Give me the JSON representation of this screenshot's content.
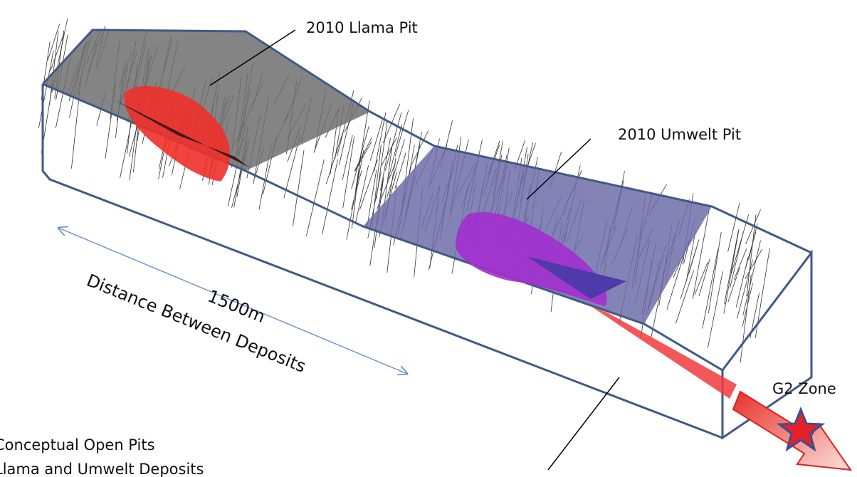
{
  "labels": {
    "llama_pit": "2010 Llama Pit",
    "umwelt_pit": "2010 Umwelt Pit",
    "distance_value": "1500m",
    "distance_caption": "Distance Between Deposits",
    "g2_zone": "G2 Zone"
  },
  "caption": {
    "line1": "Conceptual Open Pits",
    "line2": "Llama and Umwelt Deposits"
  }
}
